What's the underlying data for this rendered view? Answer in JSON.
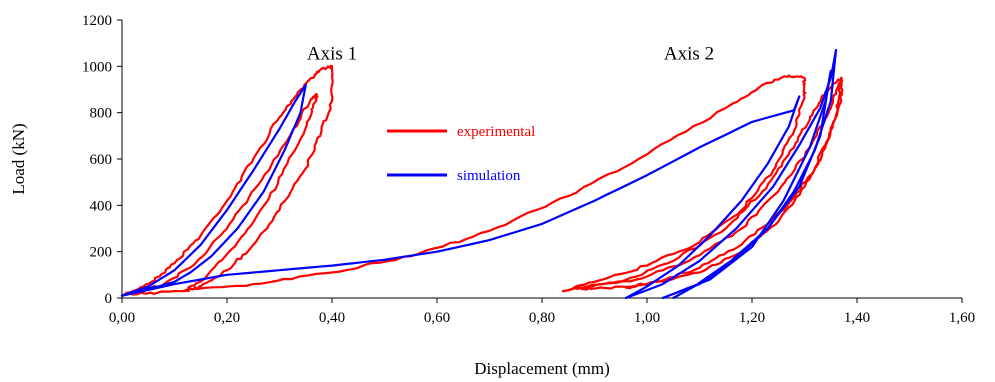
{
  "chart_data": {
    "type": "line",
    "title": "",
    "xlabel": "Displacement (mm)",
    "ylabel": "Load (kN)",
    "xlim": [
      0,
      1.6
    ],
    "ylim": [
      0,
      1200
    ],
    "x_ticks": [
      "0,00",
      "0,20",
      "0,40",
      "0,60",
      "0,80",
      "1,00",
      "1,20",
      "1,40",
      "1,60"
    ],
    "y_ticks": [
      "0",
      "200",
      "400",
      "600",
      "800",
      "1000",
      "1200"
    ],
    "x_tick_values": [
      0,
      0.2,
      0.4,
      0.6,
      0.8,
      1.0,
      1.2,
      1.4,
      1.6
    ],
    "y_tick_values": [
      0,
      200,
      400,
      600,
      800,
      1000,
      1200
    ],
    "grid": false,
    "legend_position": "center",
    "annotations": [
      {
        "text": "Axis 1",
        "x": 0.4,
        "y": 1030
      },
      {
        "text": "Axis 2",
        "x": 1.08,
        "y": 1030
      }
    ],
    "series": [
      {
        "name": "experimental",
        "color": "#ff0000",
        "segments": [
          {
            "x": [
              0.0,
              0.05,
              0.1,
              0.15,
              0.2,
              0.25,
              0.3,
              0.33,
              0.36,
              0.38,
              0.4
            ],
            "y": [
              10,
              60,
              150,
              270,
              420,
              600,
              780,
              870,
              950,
              990,
              1000
            ]
          },
          {
            "x": [
              0.4,
              0.4,
              0.38,
              0.35,
              0.3,
              0.25,
              0.2,
              0.15,
              0.12
            ],
            "y": [
              1000,
              850,
              720,
              560,
              380,
              230,
              120,
              50,
              30
            ]
          },
          {
            "x": [
              0.12,
              0.16,
              0.22,
              0.28,
              0.33,
              0.36,
              0.37,
              0.37
            ],
            "y": [
              30,
              90,
              240,
              430,
              640,
              790,
              860,
              880
            ]
          },
          {
            "x": [
              0.37,
              0.36,
              0.32,
              0.26,
              0.2,
              0.14,
              0.08,
              0.02
            ],
            "y": [
              880,
              860,
              700,
              490,
              300,
              150,
              60,
              15
            ]
          },
          {
            "x": [
              0.02,
              0.1,
              0.25,
              0.4,
              0.55,
              0.7,
              0.85,
              1.0,
              1.15,
              1.22,
              1.27
            ],
            "y": [
              15,
              30,
              60,
              110,
              180,
              290,
              440,
              620,
              820,
              920,
              960
            ]
          },
          {
            "x": [
              1.27,
              1.3,
              1.3,
              1.28,
              1.24,
              1.18,
              1.1,
              1.0,
              0.9,
              0.84
            ],
            "y": [
              960,
              950,
              870,
              720,
              550,
              380,
              240,
              140,
              70,
              30
            ]
          },
          {
            "x": [
              0.84,
              0.95,
              1.05,
              1.15,
              1.22,
              1.27,
              1.31,
              1.34,
              1.37
            ],
            "y": [
              30,
              70,
              160,
              300,
              460,
              620,
              770,
              890,
              950
            ]
          },
          {
            "x": [
              1.37,
              1.37,
              1.34,
              1.3,
              1.25,
              1.18,
              1.1,
              1.0,
              0.9,
              0.86
            ],
            "y": [
              950,
              850,
              650,
              480,
              330,
              200,
              110,
              60,
              40,
              40
            ]
          },
          {
            "x": [
              0.86,
              0.98,
              1.08,
              1.18,
              1.25,
              1.31,
              1.35,
              1.37
            ],
            "y": [
              40,
              80,
              160,
              300,
              460,
              650,
              820,
              950
            ]
          },
          {
            "x": [
              1.37,
              1.36,
              1.32,
              1.26,
              1.18,
              1.1,
              1.02,
              0.96
            ],
            "y": [
              950,
              780,
              560,
              380,
              230,
              130,
              70,
              45
            ]
          }
        ]
      },
      {
        "name": "simulation",
        "color": "#0000ff",
        "segments": [
          {
            "x": [
              0.0,
              0.05,
              0.1,
              0.15,
              0.2,
              0.25,
              0.3,
              0.33,
              0.35
            ],
            "y": [
              10,
              50,
              120,
              230,
              380,
              550,
              730,
              850,
              920
            ]
          },
          {
            "x": [
              0.35,
              0.34,
              0.31,
              0.27,
              0.22,
              0.17,
              0.13,
              0.1,
              0.07,
              0.04,
              0.0
            ],
            "y": [
              920,
              800,
              640,
              460,
              300,
              180,
              110,
              70,
              50,
              40,
              10
            ]
          },
          {
            "x": [
              0.0,
              0.1,
              0.2,
              0.3,
              0.4,
              0.5,
              0.6,
              0.7,
              0.8,
              0.9,
              1.0,
              1.1,
              1.2,
              1.28
            ],
            "y": [
              10,
              60,
              100,
              120,
              140,
              165,
              200,
              250,
              320,
              420,
              530,
              650,
              760,
              810
            ]
          },
          {
            "x": [
              1.28,
              1.29,
              1.27,
              1.23,
              1.18,
              1.12,
              1.06,
              1.0,
              0.96
            ],
            "y": [
              810,
              870,
              740,
              580,
              420,
              270,
              140,
              50,
              0
            ]
          },
          {
            "x": [
              0.96,
              1.03,
              1.1,
              1.17,
              1.24,
              1.29,
              1.33,
              1.35,
              1.36
            ],
            "y": [
              0,
              60,
              160,
              300,
              480,
              660,
              820,
              950,
              1070
            ]
          },
          {
            "x": [
              1.36,
              1.35,
              1.32,
              1.28,
              1.23,
              1.17,
              1.1,
              1.03
            ],
            "y": [
              1070,
              850,
              640,
              460,
              300,
              170,
              60,
              0
            ]
          },
          {
            "x": [
              1.03,
              1.12,
              1.2,
              1.26,
              1.31,
              1.34,
              1.35
            ],
            "y": [
              0,
              80,
              220,
              420,
              650,
              850,
              980
            ]
          },
          {
            "x": [
              1.35,
              1.33,
              1.29,
              1.23,
              1.16,
              1.09,
              1.05
            ],
            "y": [
              980,
              700,
              480,
              300,
              160,
              50,
              0
            ]
          }
        ]
      }
    ]
  }
}
